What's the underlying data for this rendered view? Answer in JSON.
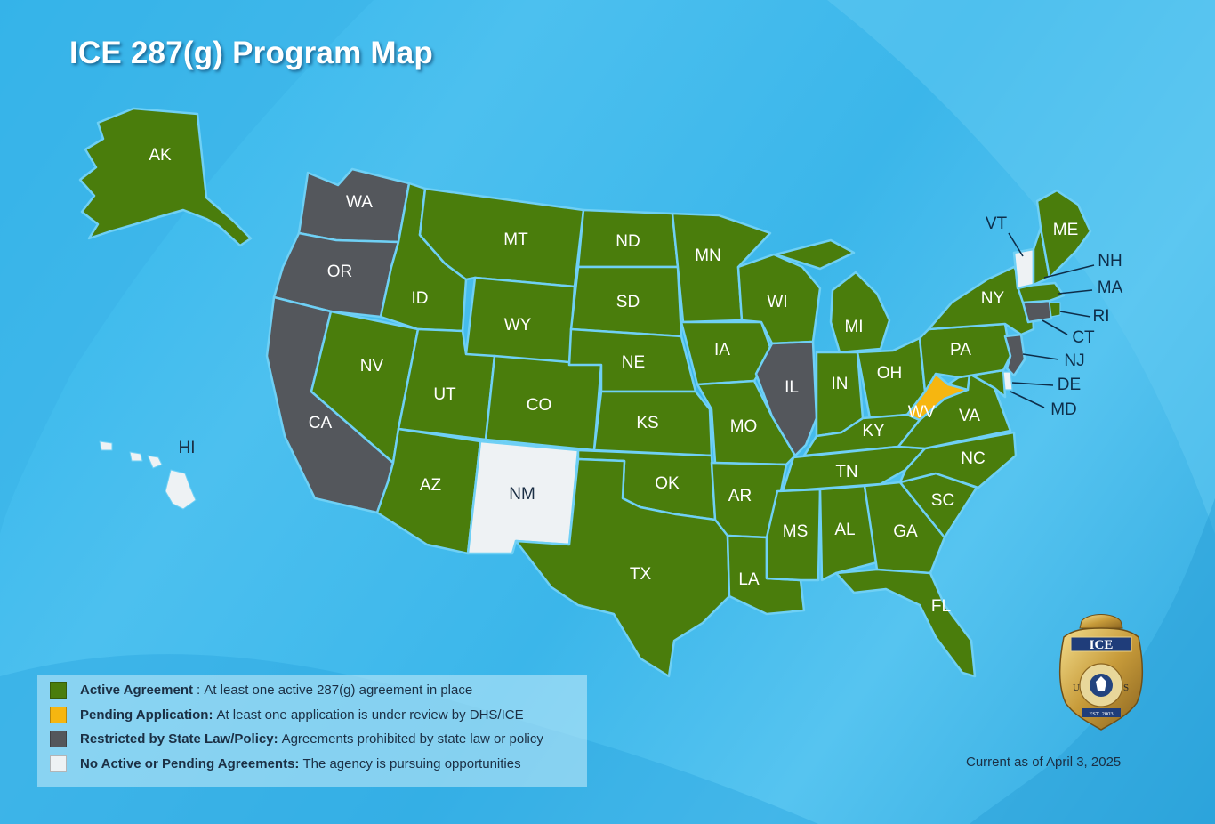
{
  "title": "ICE 287(g) Program Map",
  "updated": "Current as of April 3, 2025",
  "colors": {
    "active": "#4a7d0c",
    "pending": "#f6b610",
    "restricted": "#54575c",
    "none": "#eef2f4"
  },
  "legend": [
    {
      "status": "active",
      "label": "Active Agreement",
      "desc": "At least one active 287(g) agreement in place"
    },
    {
      "status": "pending",
      "label": "Pending Application:",
      "desc": "At least one application is under review by DHS/ICE"
    },
    {
      "status": "restricted",
      "label": "Restricted by State Law/Policy:",
      "desc": "Agreements prohibited by state law or policy"
    },
    {
      "status": "none",
      "label": "No Active or Pending Agreements:",
      "desc": "The agency is pursuing opportunities"
    }
  ],
  "states": [
    {
      "id": "AK",
      "status": "active"
    },
    {
      "id": "HI",
      "status": "none"
    },
    {
      "id": "WA",
      "status": "restricted"
    },
    {
      "id": "OR",
      "status": "restricted"
    },
    {
      "id": "CA",
      "status": "restricted"
    },
    {
      "id": "IL",
      "status": "restricted"
    },
    {
      "id": "NJ",
      "status": "restricted"
    },
    {
      "id": "CT",
      "status": "restricted"
    },
    {
      "id": "NM",
      "status": "none"
    },
    {
      "id": "VT",
      "status": "none"
    },
    {
      "id": "DE",
      "status": "none"
    },
    {
      "id": "WV",
      "status": "pending"
    },
    {
      "id": "ID",
      "status": "active"
    },
    {
      "id": "MT",
      "status": "active"
    },
    {
      "id": "ND",
      "status": "active"
    },
    {
      "id": "MN",
      "status": "active"
    },
    {
      "id": "WI",
      "status": "active"
    },
    {
      "id": "MI",
      "status": "active"
    },
    {
      "id": "NV",
      "status": "active"
    },
    {
      "id": "UT",
      "status": "active"
    },
    {
      "id": "WY",
      "status": "active"
    },
    {
      "id": "SD",
      "status": "active"
    },
    {
      "id": "NE",
      "status": "active"
    },
    {
      "id": "IA",
      "status": "active"
    },
    {
      "id": "AZ",
      "status": "active"
    },
    {
      "id": "CO",
      "status": "active"
    },
    {
      "id": "KS",
      "status": "active"
    },
    {
      "id": "MO",
      "status": "active"
    },
    {
      "id": "OK",
      "status": "active"
    },
    {
      "id": "AR",
      "status": "active"
    },
    {
      "id": "TX",
      "status": "active"
    },
    {
      "id": "LA",
      "status": "active"
    },
    {
      "id": "MS",
      "status": "active"
    },
    {
      "id": "AL",
      "status": "active"
    },
    {
      "id": "GA",
      "status": "active"
    },
    {
      "id": "FL",
      "status": "active"
    },
    {
      "id": "SC",
      "status": "active"
    },
    {
      "id": "NC",
      "status": "active"
    },
    {
      "id": "TN",
      "status": "active"
    },
    {
      "id": "KY",
      "status": "active"
    },
    {
      "id": "IN",
      "status": "active"
    },
    {
      "id": "OH",
      "status": "active"
    },
    {
      "id": "PA",
      "status": "active"
    },
    {
      "id": "NY",
      "status": "active"
    },
    {
      "id": "VA",
      "status": "active"
    },
    {
      "id": "MD",
      "status": "active"
    },
    {
      "id": "ME",
      "status": "active"
    },
    {
      "id": "NH",
      "status": "active"
    },
    {
      "id": "MA",
      "status": "active"
    },
    {
      "id": "RI",
      "status": "active"
    }
  ],
  "badge": {
    "top": "ICE",
    "left": "U",
    "right": "S",
    "est": "EST. 2003"
  }
}
